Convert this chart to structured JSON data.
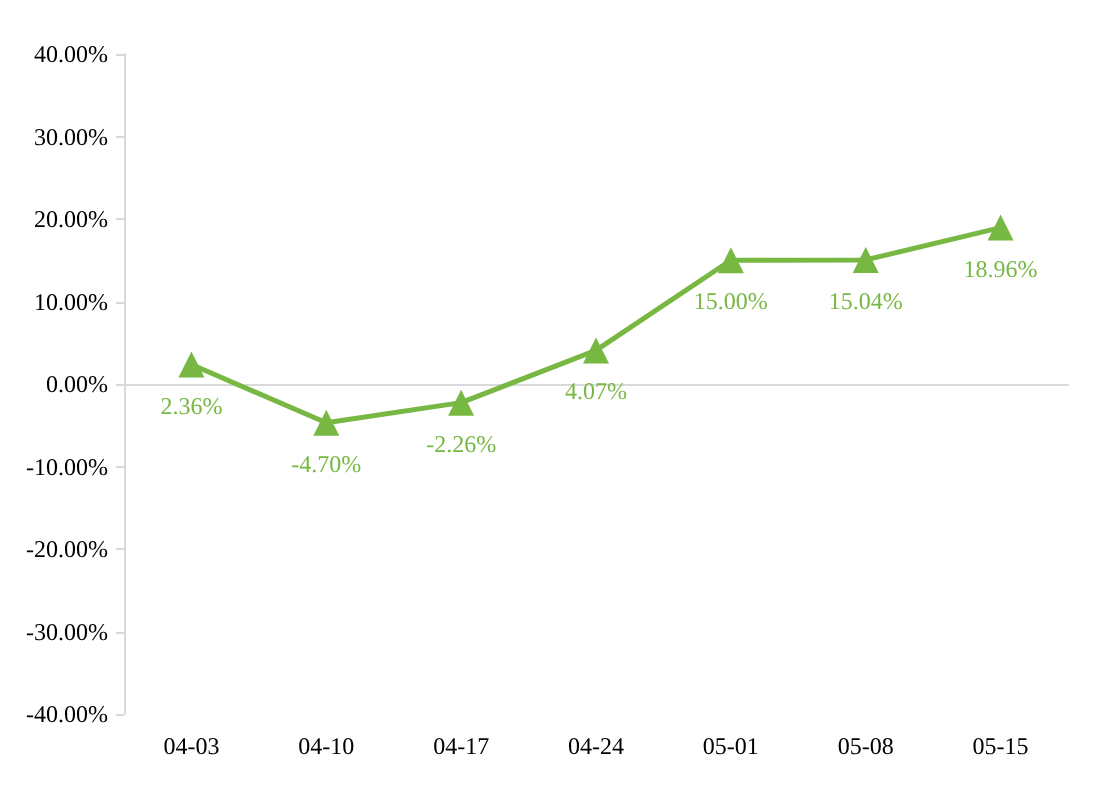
{
  "chart_data": {
    "type": "line",
    "categories": [
      "04-03",
      "04-10",
      "04-17",
      "04-24",
      "05-01",
      "05-08",
      "05-15"
    ],
    "series": [
      {
        "color": "#77b843",
        "values": [
          2.36,
          -4.7,
          -2.26,
          4.07,
          15.0,
          15.04,
          18.96
        ],
        "value_labels": [
          "2.36%",
          "-4.70%",
          "-2.26%",
          "4.07%",
          "15.00%",
          "15.04%",
          "18.96%"
        ]
      }
    ],
    "ylim": [
      -40,
      40
    ],
    "yticks": [
      {
        "value": -40,
        "label": "-40.00%"
      },
      {
        "value": -30,
        "label": "-30.00%"
      },
      {
        "value": -20,
        "label": "-20.00%"
      },
      {
        "value": -10,
        "label": "-10.00%"
      },
      {
        "value": 0,
        "label": "0.00%"
      },
      {
        "value": 10,
        "label": "10.00%"
      },
      {
        "value": 20,
        "label": "20.00%"
      },
      {
        "value": 30,
        "label": "30.00%"
      },
      {
        "value": 40,
        "label": "40.00%"
      }
    ],
    "marker": "triangle",
    "line_style": "solid"
  }
}
